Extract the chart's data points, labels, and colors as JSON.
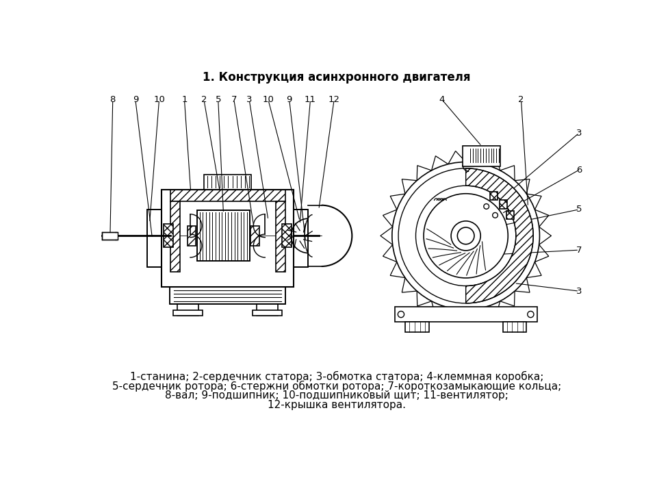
{
  "title": "1. Конструкция асинхронного двигателя",
  "title_fontsize": 12,
  "title_fontweight": "bold",
  "caption_lines": [
    "1-станина; 2-сердечник статора; 3-обмотка статора; 4-клеммная коробка;",
    "5-сердечник ротора; 6-стержни обмотки ротора; 7-короткозамыкающие кольца;",
    "8-вал; 9-подшипник; 10-подшипниковый щит; 11-вентилятор;",
    "12-крышка вентилятора."
  ],
  "caption_fontsize": 11,
  "bg_color": "#ffffff",
  "line_color": "#000000"
}
